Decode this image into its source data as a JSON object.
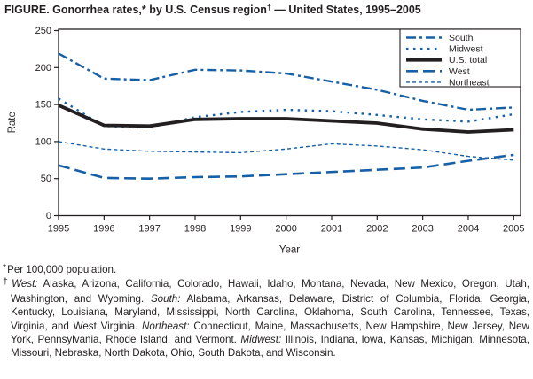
{
  "figure": {
    "title_prefix": "FIGURE. Gonorrhea rates,* by U.S. Census region",
    "title_sup": "†",
    "title_suffix": " — United States, 1995–2005"
  },
  "colors": {
    "accent_blue": "#1660a8",
    "ink": "#231f20"
  },
  "chart_data": {
    "type": "line",
    "title": "FIGURE. Gonorrhea rates,* by U.S. Census region† — United States, 1995–2005",
    "xlabel": "Year",
    "ylabel": "Rate",
    "ylim": [
      0,
      250
    ],
    "y_ticks": [
      0,
      50,
      100,
      150,
      200,
      250
    ],
    "x": [
      1995,
      1996,
      1997,
      1998,
      1999,
      2000,
      2001,
      2002,
      2003,
      2004,
      2005
    ],
    "grid": false,
    "legend_position": "top-right",
    "legend_order": [
      "South",
      "Midwest",
      "U.S. total",
      "West",
      "Northeast"
    ],
    "series": [
      {
        "name": "South",
        "style": "dash-dot",
        "color": "blue",
        "values": [
          219,
          185,
          183,
          197,
          196,
          192,
          181,
          170,
          155,
          143,
          146
        ]
      },
      {
        "name": "Midwest",
        "style": "dotted",
        "color": "blue",
        "values": [
          158,
          121,
          119,
          133,
          140,
          143,
          141,
          136,
          130,
          127,
          137
        ]
      },
      {
        "name": "U.S. total",
        "style": "solid",
        "color": "black",
        "values": [
          149,
          122,
          121,
          130,
          131,
          131,
          128,
          125,
          117,
          113,
          116
        ]
      },
      {
        "name": "West",
        "style": "long-dash",
        "color": "blue",
        "values": [
          68,
          51,
          50,
          52,
          53,
          56,
          59,
          62,
          65,
          74,
          82
        ]
      },
      {
        "name": "Northeast",
        "style": "short-dash",
        "color": "blue",
        "values": [
          100,
          90,
          87,
          86,
          85,
          90,
          97,
          94,
          89,
          80,
          75
        ]
      }
    ]
  },
  "footnotes": [
    {
      "marker": "*",
      "segments": [
        {
          "text": "Per 100,000 population.",
          "italic": false
        }
      ]
    },
    {
      "marker": "†",
      "segments": [
        {
          "text": "West:",
          "italic": true
        },
        {
          "text": " Alaska, Arizona, California, Colorado, Hawaii, Idaho, Montana, Nevada, New Mexico, Oregon, Utah, Washington, and Wyoming. ",
          "italic": false
        },
        {
          "text": "South:",
          "italic": true
        },
        {
          "text": " Alabama, Arkansas, Delaware, District of Columbia, Florida, Georgia, Kentucky, Louisiana, Maryland, Mississippi, North Carolina, Oklahoma, South Carolina, Tennessee, Texas, Virginia, and West Virginia. ",
          "italic": false
        },
        {
          "text": "Northeast:",
          "italic": true
        },
        {
          "text": " Connecticut, Maine, Massachusetts, New Hampshire, New Jersey, New York, Pennsylvania, Rhode Island, and Vermont. ",
          "italic": false
        },
        {
          "text": "Midwest:",
          "italic": true
        },
        {
          "text": " Illinois, Indiana, Iowa, Kansas, Michigan, Minnesota, Missouri, Nebraska, North Dakota, Ohio, South Dakota, and Wisconsin.",
          "italic": false
        }
      ]
    }
  ]
}
